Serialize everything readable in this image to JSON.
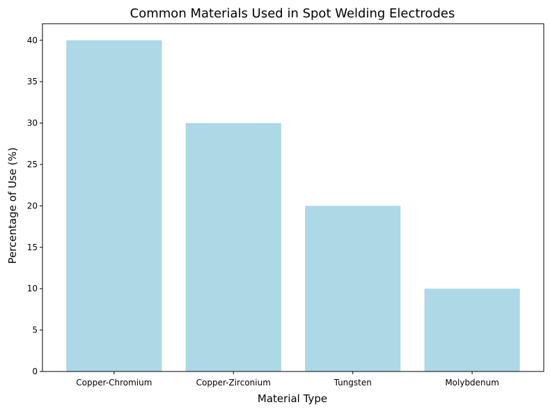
{
  "chart_data": {
    "type": "bar",
    "title": "Common Materials Used in Spot Welding Electrodes",
    "xlabel": "Material Type",
    "ylabel": "Percentage of Use (%)",
    "categories": [
      "Copper-Chromium",
      "Copper-Zirconium",
      "Tungsten",
      "Molybdenum"
    ],
    "values": [
      40,
      30,
      20,
      10
    ],
    "ylim": [
      0,
      42
    ],
    "yticks": [
      0,
      5,
      10,
      15,
      20,
      25,
      30,
      35,
      40
    ],
    "bar_color": "#add8e6",
    "grid": false,
    "legend": "none"
  }
}
